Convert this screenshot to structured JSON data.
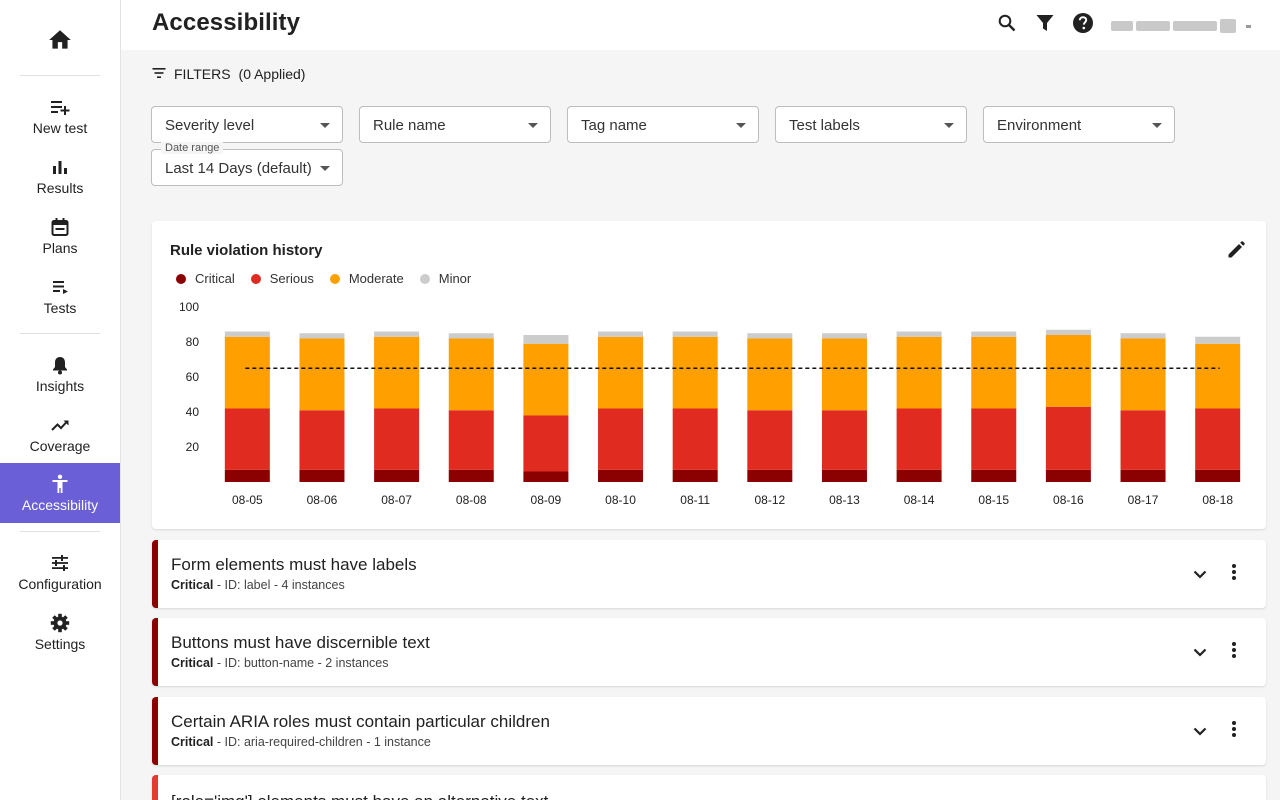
{
  "nav": {
    "home": "home-icon",
    "items": [
      {
        "label": "New test",
        "icon": "new-test-icon"
      },
      {
        "label": "Results",
        "icon": "results-icon"
      },
      {
        "label": "Plans",
        "icon": "plans-icon"
      },
      {
        "label": "Tests",
        "icon": "tests-icon"
      },
      {
        "label": "Insights",
        "icon": "insights-icon"
      },
      {
        "label": "Coverage",
        "icon": "coverage-icon"
      },
      {
        "label": "Accessibility",
        "icon": "accessibility-icon",
        "active": true
      },
      {
        "label": "Configuration",
        "icon": "configuration-icon"
      },
      {
        "label": "Settings",
        "icon": "gear-icon"
      }
    ],
    "active_color": "#6a5fd6"
  },
  "header": {
    "title": "Accessibility"
  },
  "filters": {
    "heading": "FILTERS",
    "applied": "(0 Applied)",
    "severity": "Severity level",
    "rule_name": "Rule name",
    "tag_name": "Tag name",
    "test_labels": "Test labels",
    "environment": "Environment",
    "date_range_label": "Date range",
    "date_range_value": "Last 14 Days (default)"
  },
  "chart_card": {
    "title": "Rule violation history",
    "legend": [
      {
        "name": "Critical",
        "color": "#8b0000"
      },
      {
        "name": "Serious",
        "color": "#e02b20"
      },
      {
        "name": "Moderate",
        "color": "#ff9f00"
      },
      {
        "name": "Minor",
        "color": "#cccccc"
      }
    ]
  },
  "chart_data": {
    "type": "bar",
    "stacked": true,
    "categories": [
      "08-05",
      "08-06",
      "08-07",
      "08-08",
      "08-09",
      "08-10",
      "08-11",
      "08-12",
      "08-13",
      "08-14",
      "08-15",
      "08-16",
      "08-17",
      "08-18"
    ],
    "series": [
      {
        "name": "Critical",
        "color": "#8b0000",
        "values": [
          7,
          7,
          7,
          7,
          6,
          7,
          7,
          7,
          7,
          7,
          7,
          7,
          7,
          7
        ]
      },
      {
        "name": "Serious",
        "color": "#e02b20",
        "values": [
          35,
          34,
          35,
          34,
          32,
          35,
          35,
          34,
          34,
          35,
          35,
          36,
          34,
          35
        ]
      },
      {
        "name": "Moderate",
        "color": "#ff9f00",
        "values": [
          41,
          41,
          41,
          41,
          41,
          41,
          41,
          41,
          41,
          41,
          41,
          41,
          41,
          37
        ]
      },
      {
        "name": "Minor",
        "color": "#cccccc",
        "values": [
          3,
          3,
          3,
          3,
          5,
          3,
          3,
          3,
          3,
          3,
          3,
          3,
          3,
          4
        ]
      }
    ],
    "reference_line": 65,
    "ylim": [
      0,
      100
    ],
    "yticks": [
      20,
      40,
      60,
      80,
      100
    ],
    "grid": false,
    "legend_position": "top-left"
  },
  "rules": [
    {
      "title": "Form elements must have labels",
      "severity": "Critical",
      "detail": " - ID: label - 4 instances"
    },
    {
      "title": "Buttons must have discernible text",
      "severity": "Critical",
      "detail": " - ID: button-name - 2 instances"
    },
    {
      "title": "Certain ARIA roles must contain particular children",
      "severity": "Critical",
      "detail": " - ID: aria-required-children - 1 instance"
    },
    {
      "title": "[role='img'] elements must have an alternative text"
    }
  ]
}
